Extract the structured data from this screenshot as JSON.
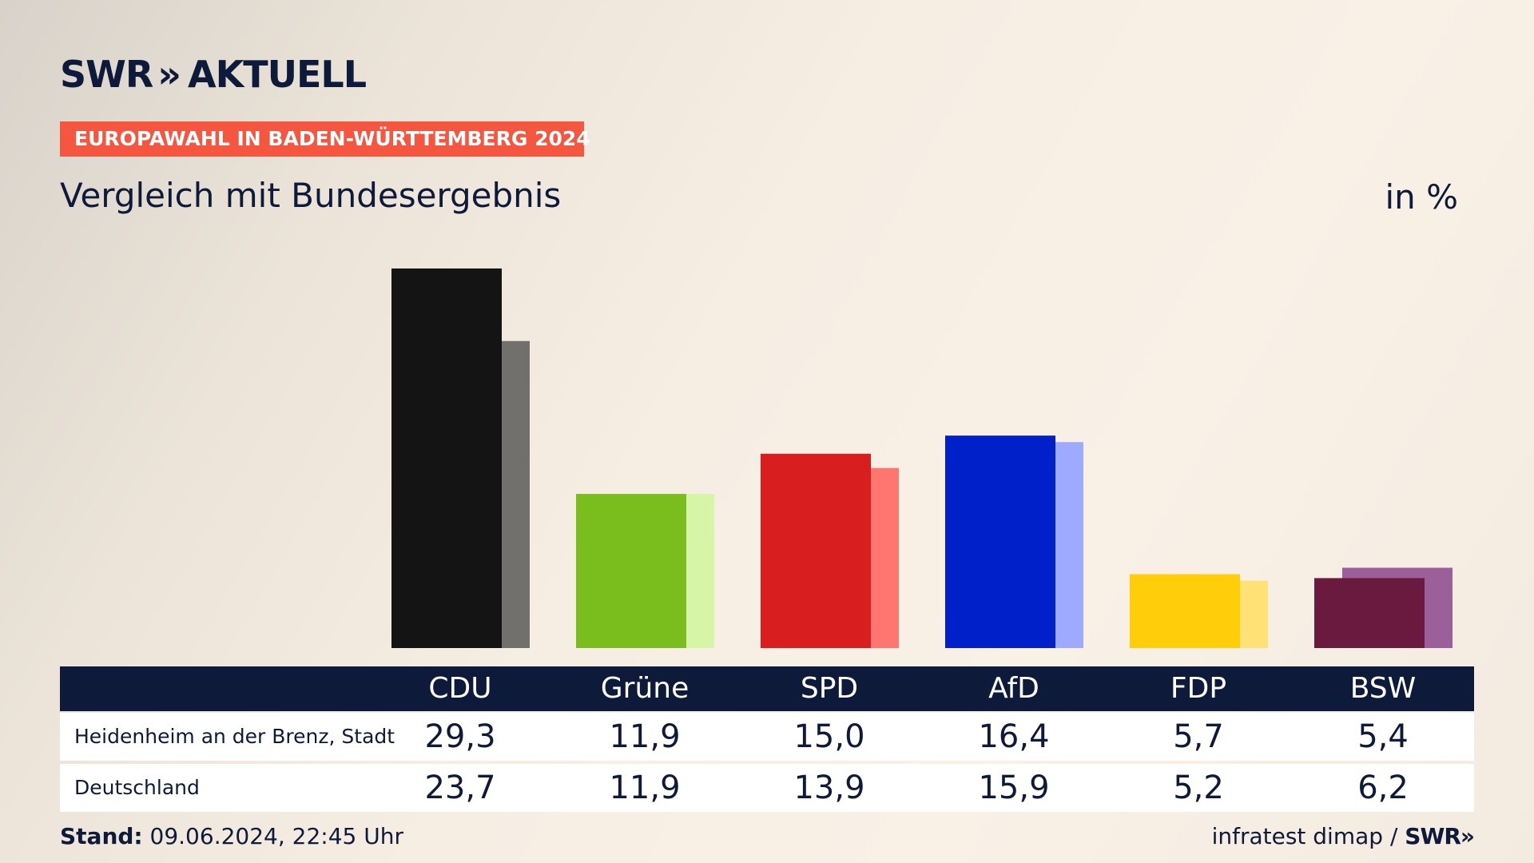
{
  "branding": {
    "logo_swr": "SWR",
    "logo_chevrons": "»",
    "logo_name": "AKTUELL"
  },
  "kicker": "EUROPAWAHL IN BADEN-WÜRTTEMBERG 2024",
  "header": {
    "title": "Vergleich mit Bundesergebnis",
    "unit": "in %"
  },
  "footer": {
    "stand_label": "Stand:",
    "stand_value": "09.06.2024, 22:45 Uhr",
    "source_text": "infratest dimap /",
    "source_logo": "SWR»"
  },
  "chart_data": {
    "type": "bar",
    "categories": [
      "CDU",
      "Grüne",
      "SPD",
      "AfD",
      "FDP",
      "BSW"
    ],
    "series": [
      {
        "name": "Heidenheim an der Brenz, Stadt",
        "values": [
          29.3,
          11.9,
          15.0,
          16.4,
          5.7,
          5.4
        ],
        "labels": [
          "29,3",
          "11,9",
          "15,0",
          "16,4",
          "5,7",
          "5,4"
        ],
        "colors": [
          "#141414",
          "#7abe1e",
          "#d81e1e",
          "#0020c9",
          "#ffcd0a",
          "#6a1a3e"
        ]
      },
      {
        "name": "Deutschland",
        "values": [
          23.7,
          11.9,
          13.9,
          15.9,
          5.2,
          6.2
        ],
        "labels": [
          "23,7",
          "11,9",
          "13,9",
          "15,9",
          "5,2",
          "6,2"
        ],
        "colors": [
          "#72706c",
          "#d6f5a6",
          "#ff7570",
          "#9eaaff",
          "#ffe176",
          "#9b5f9a"
        ]
      }
    ],
    "ylim": [
      0,
      29.3
    ],
    "grid": false,
    "legend": "table-below"
  }
}
